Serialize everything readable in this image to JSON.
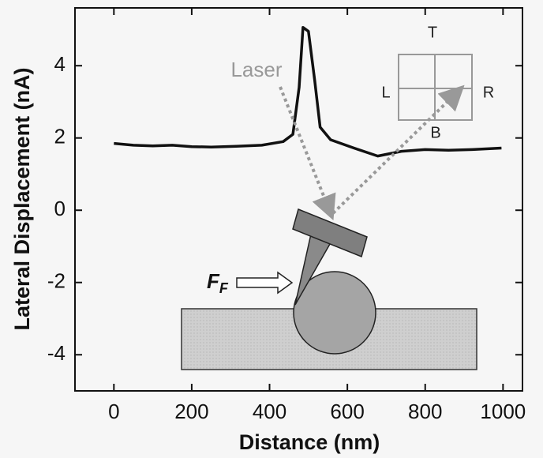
{
  "chart_data": {
    "type": "line",
    "x_label": "Distance (nm)",
    "y_label": "Lateral Displacement (nA)",
    "x": [
      0,
      50,
      100,
      150,
      200,
      250,
      314,
      380,
      435,
      460,
      476,
      486,
      500,
      516,
      530,
      557,
      617,
      678,
      739,
      800,
      860,
      921,
      996
    ],
    "values": [
      1.85,
      1.8,
      1.78,
      1.8,
      1.76,
      1.75,
      1.77,
      1.8,
      1.9,
      2.1,
      3.4,
      5.06,
      4.95,
      3.6,
      2.3,
      1.95,
      1.72,
      1.5,
      1.63,
      1.68,
      1.66,
      1.68,
      1.72
    ],
    "color": "#111111",
    "xlim": [
      -100,
      1050
    ],
    "ylim": [
      -5,
      5.6
    ],
    "xticks": [
      0,
      200,
      400,
      600,
      800,
      1000
    ],
    "yticks": [
      -4,
      -2,
      0,
      2,
      4
    ],
    "annotations": [
      "Laser",
      "T",
      "L",
      "R",
      "B"
    ],
    "force_label": {
      "text": "F",
      "subscript": "F"
    }
  }
}
